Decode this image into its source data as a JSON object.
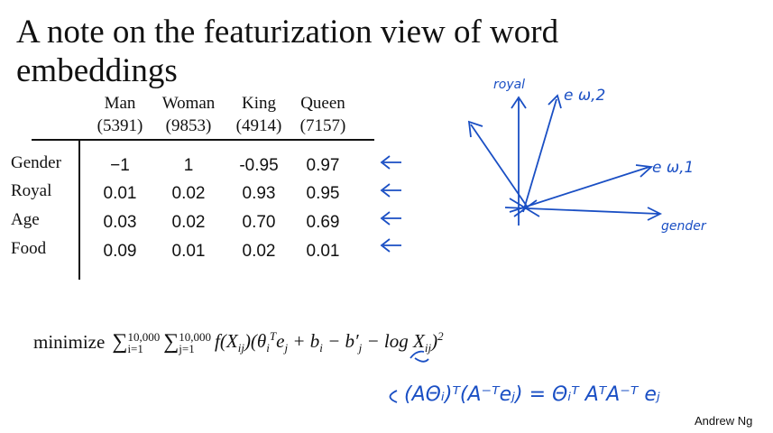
{
  "title": {
    "line1": "A note on the featurization view of word",
    "line2": "embeddings"
  },
  "table": {
    "columns": [
      {
        "name": "Man",
        "index": "(5391)"
      },
      {
        "name": "Woman",
        "index": "(9853)"
      },
      {
        "name": "King",
        "index": "(4914)"
      },
      {
        "name": "Queen",
        "index": "(7157)"
      }
    ],
    "rows": [
      {
        "label": "Gender",
        "values": [
          "−1",
          "1",
          "-0.95",
          "0.97"
        ]
      },
      {
        "label": "Royal",
        "values": [
          "0.01",
          "0.02",
          "0.93",
          "0.95"
        ]
      },
      {
        "label": "Age",
        "values": [
          "0.03",
          "0.02",
          "0.70",
          "0.69"
        ]
      },
      {
        "label": "Food",
        "values": [
          "0.09",
          "0.01",
          "0.02",
          "0.01"
        ]
      }
    ]
  },
  "diagram": {
    "royal": "royal",
    "e_w2": "e ω,2",
    "e_w1": "e ω,1",
    "gender": "gender"
  },
  "formula": {
    "prefix": "minimize",
    "sum1": {
      "symbol": "∑",
      "lower": "i=1",
      "upper": "10,000"
    },
    "sum2": {
      "symbol": "∑",
      "lower": "j=1",
      "upper": "10,000"
    },
    "tokens": [
      "f(X",
      "ij",
      ")(θ",
      "i",
      "T",
      "e",
      "j",
      " + b",
      "i",
      " − b′",
      "j",
      " − log X",
      "ij",
      ")",
      "2"
    ]
  },
  "handwritten": "(AΘᵢ)ᵀ(A⁻ᵀeⱼ) = Θᵢᵀ AᵀA⁻ᵀ eⱼ",
  "footer": "Andrew Ng"
}
